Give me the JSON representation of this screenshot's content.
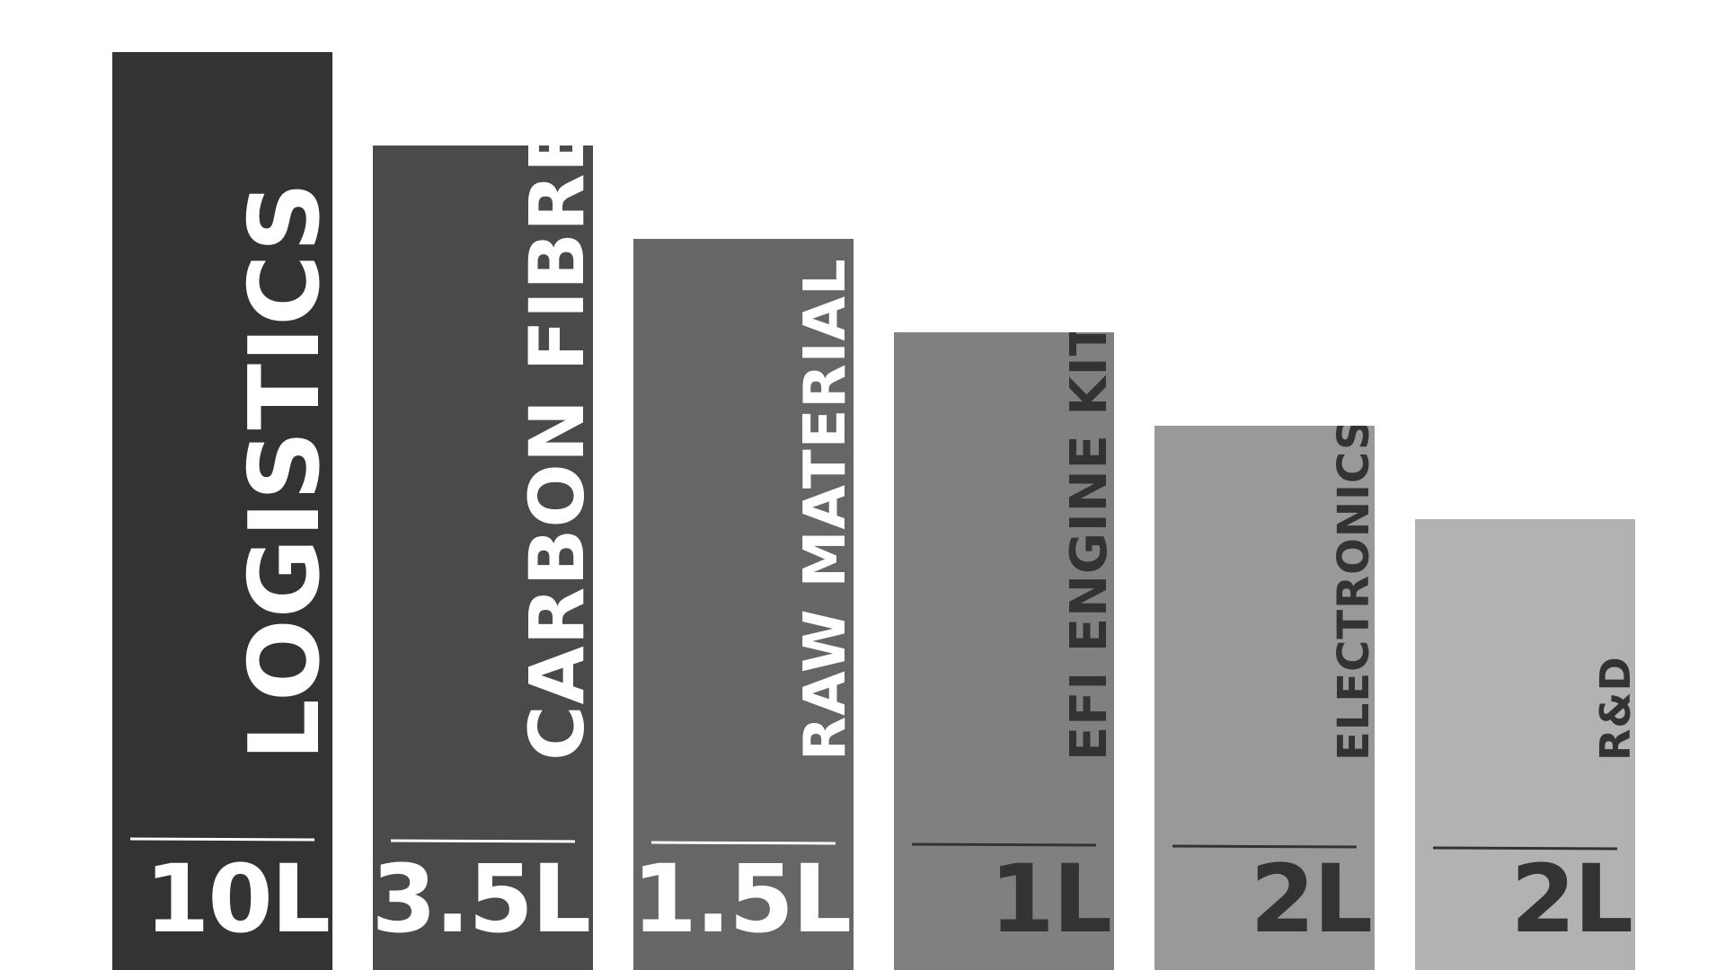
{
  "chart_data": {
    "type": "bar",
    "categories": [
      "LOGISTICS",
      "CARBON FIBRE",
      "RAW MATERIAL",
      "EFI ENGINE KIT",
      "ELECTRONICS",
      "R&D"
    ],
    "value_labels": [
      "10L",
      "3.5L",
      "1.5L",
      "1L",
      "2L",
      "2L"
    ],
    "title": "",
    "xlabel": "",
    "ylabel": "",
    "grid": false,
    "legend": "none",
    "bar_colors": [
      "#333333",
      "#4a4a4a",
      "#666666",
      "#808080",
      "#999999",
      "#b2b2b2"
    ],
    "label_colors": [
      "#ffffff",
      "#ffffff",
      "#ffffff",
      "#333333",
      "#333333",
      "#333333"
    ]
  }
}
